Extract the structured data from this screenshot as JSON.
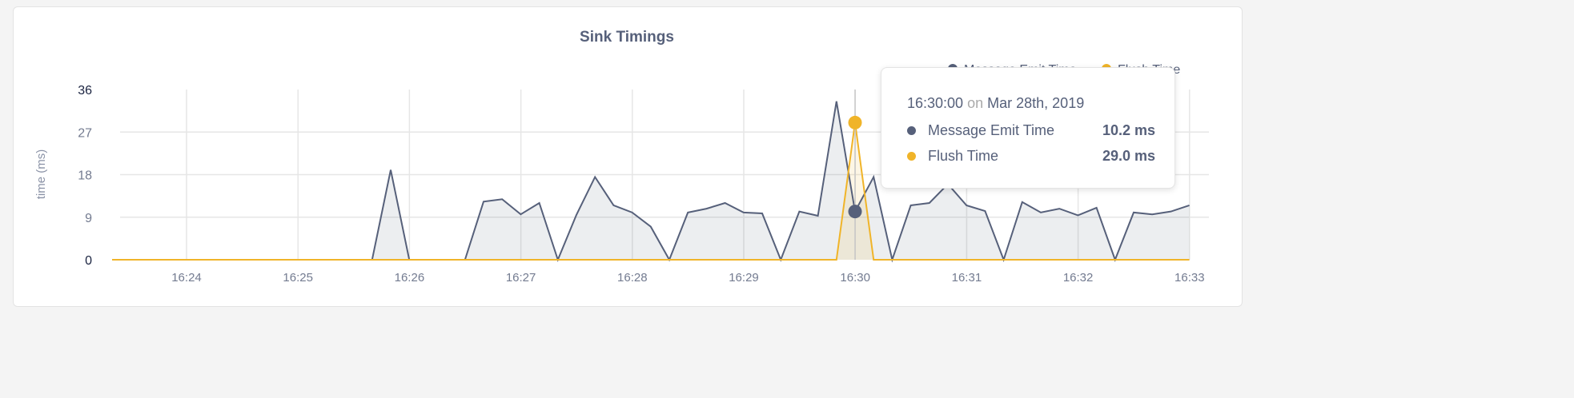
{
  "chart_data": {
    "type": "area",
    "title": "Sink Timings",
    "xlabel": "",
    "ylabel": "time (ms)",
    "ylim": [
      0,
      36
    ],
    "yticks": [
      "0",
      "9",
      "18",
      "27",
      "36"
    ],
    "xticks": [
      "16:24",
      "16:25",
      "16:26",
      "16:27",
      "16:28",
      "16:29",
      "16:30",
      "16:31",
      "16:32",
      "16:33"
    ],
    "x_start": "16:23:20",
    "x_step_seconds": 10,
    "grid": true,
    "legend": "top-right",
    "series": [
      {
        "name": "Message Emit Time",
        "color": "#56607a",
        "values": [
          0,
          0,
          0,
          0,
          0,
          0,
          0,
          0,
          0,
          0,
          0,
          0,
          0,
          0,
          0,
          19,
          0,
          0,
          0,
          0,
          12.3,
          12.8,
          9.6,
          12,
          0,
          9.5,
          17.5,
          11.5,
          10,
          7,
          0,
          10,
          10.8,
          12,
          10,
          9.8,
          0,
          10.2,
          9.3,
          33.5,
          10.2,
          17.5,
          0,
          11.5,
          12,
          16,
          11.5,
          10.3,
          0,
          12.2,
          10,
          10.8,
          9.4,
          11,
          0,
          10,
          9.6,
          10.2,
          11.5
        ]
      },
      {
        "name": "Flush Time",
        "color": "#f0b429",
        "values": [
          0,
          0,
          0,
          0,
          0,
          0,
          0,
          0,
          0,
          0,
          0,
          0,
          0,
          0,
          0,
          0,
          0,
          0,
          0,
          0,
          0,
          0,
          0,
          0,
          0,
          0,
          0,
          0,
          0,
          0,
          0,
          0,
          0,
          0,
          0,
          0,
          0,
          0,
          0,
          0,
          29,
          0,
          0,
          0,
          0,
          0,
          0,
          0,
          0,
          0,
          0,
          0,
          0,
          0,
          0,
          0,
          0,
          0,
          0
        ]
      }
    ]
  },
  "tooltip": {
    "time": "16:30:00",
    "on": "on",
    "date": "Mar 28th, 2019",
    "hover_index": 40,
    "rows": [
      {
        "label": "Message Emit Time",
        "value": "10.2 ms"
      },
      {
        "label": "Flush Time",
        "value": "29.0 ms"
      }
    ]
  }
}
